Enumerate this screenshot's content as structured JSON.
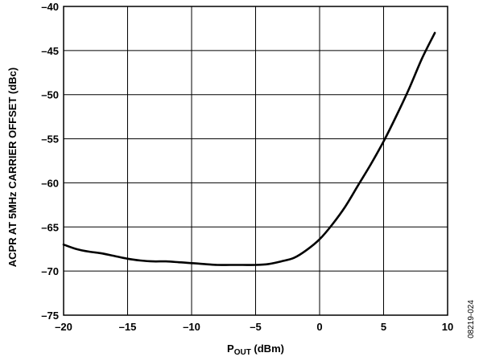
{
  "chart_data": {
    "type": "line",
    "xlabel": "P",
    "xlabel_subscript": "OUT",
    "xlabel_unit": " (dBm)",
    "ylabel": "ACPR AT 5MHz CARRIER OFFSET (dBc)",
    "xlim": [
      -20,
      10
    ],
    "ylim": [
      -75,
      -40
    ],
    "x_ticks": [
      -20,
      -15,
      -10,
      -5,
      0,
      5,
      10
    ],
    "y_ticks": [
      -40,
      -45,
      -50,
      -55,
      -60,
      -65,
      -70,
      -75
    ],
    "x_tick_labels": [
      "–20",
      "–15",
      "–10",
      "–5",
      "0",
      "5",
      "10"
    ],
    "y_tick_labels": [
      "–40",
      "–45",
      "–50",
      "–55",
      "–60",
      "–65",
      "–70",
      "–75"
    ],
    "grid": true,
    "series": [
      {
        "x": [
          -20,
          -19,
          -18,
          -17,
          -16,
          -15,
          -14,
          -13,
          -12,
          -11,
          -10,
          -9,
          -8,
          -7,
          -6,
          -5,
          -4,
          -3,
          -2,
          -1,
          0,
          1,
          2,
          3,
          4,
          5,
          6,
          7,
          8,
          9
        ],
        "y": [
          -67.0,
          -67.5,
          -67.8,
          -68.0,
          -68.3,
          -68.6,
          -68.8,
          -68.9,
          -68.9,
          -69.0,
          -69.1,
          -69.2,
          -69.3,
          -69.3,
          -69.3,
          -69.3,
          -69.2,
          -68.9,
          -68.5,
          -67.6,
          -66.4,
          -64.7,
          -62.7,
          -60.3,
          -57.9,
          -55.3,
          -52.4,
          -49.3,
          -45.9,
          -43.0
        ]
      }
    ]
  },
  "figure_id": "08219-024"
}
